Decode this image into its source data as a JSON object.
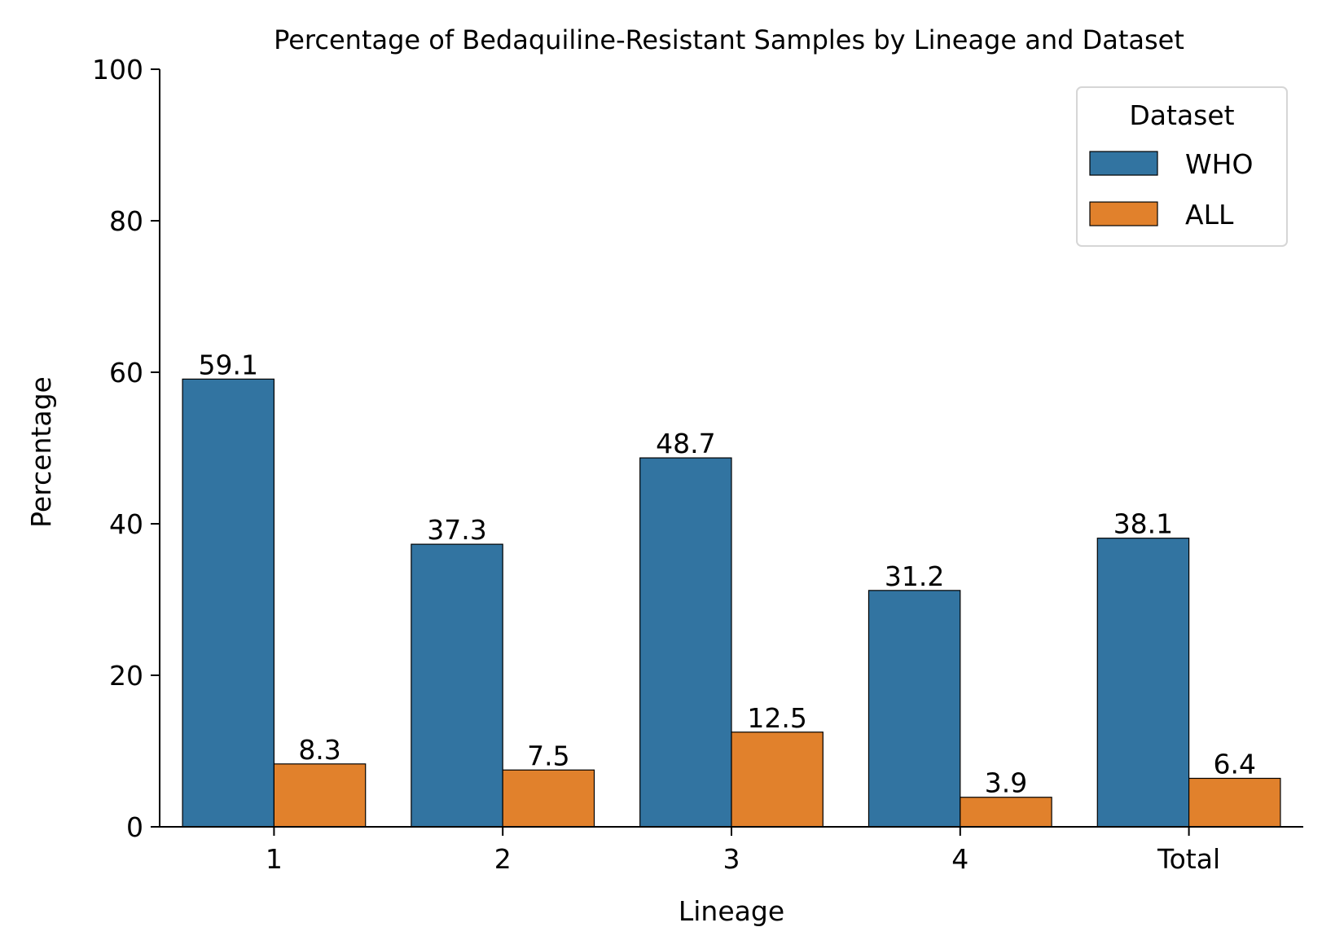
{
  "chart_data": {
    "type": "bar",
    "title": "Percentage of Bedaquiline-Resistant Samples by Lineage and Dataset",
    "xlabel": "Lineage",
    "ylabel": "Percentage",
    "categories": [
      "1",
      "2",
      "3",
      "4",
      "Total"
    ],
    "series": [
      {
        "name": "WHO",
        "color": "#3274a1",
        "values": [
          59.1,
          37.3,
          48.7,
          31.2,
          38.1
        ],
        "labels": [
          "59.1",
          "37.3",
          "48.7",
          "31.2",
          "38.1"
        ]
      },
      {
        "name": "ALL",
        "color": "#e1812c",
        "values": [
          8.3,
          7.5,
          12.5,
          3.9,
          6.4
        ],
        "labels": [
          "8.3",
          "7.5",
          "12.5",
          "3.9",
          "6.4"
        ]
      }
    ],
    "ylim": [
      0,
      100
    ],
    "yticks": [
      "0",
      "20",
      "40",
      "60",
      "80",
      "100"
    ],
    "legend": {
      "title": "Dataset",
      "position": "top-right"
    },
    "grid": false
  }
}
